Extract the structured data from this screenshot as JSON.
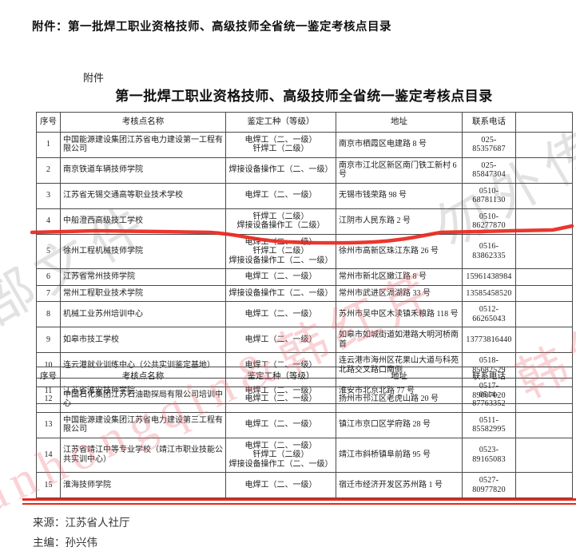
{
  "page": {
    "attachment_heading": "附件：第一批焊工职业资格技师、高级技师全省统一鉴定考核点目录",
    "attachment_label": "附件",
    "table_title": "第一批焊工职业资格技师、高级技师全省统一鉴定考核点目录",
    "source_line": "来源：江苏省人社厅",
    "editor_line": "主编：孙兴伟"
  },
  "colors": {
    "accent_red": "#e8261c",
    "table_border": "#4a4a4a",
    "text": "#1c1c1c",
    "watermark_gray": "#4b4b4b",
    "watermark_pink": "#ec6e76"
  },
  "watermarks": {
    "gray_left": "内部文件",
    "gray_right": "勿外传",
    "pink_main": "hanhongqin&韩红芹",
    "pink_edge": "韩红芹"
  },
  "columns": [
    "序号",
    "考核点名称",
    "鉴定工种（等级）",
    "地址",
    "联系电话",
    ""
  ],
  "tables": [
    {
      "rows": [
        {
          "no": "1",
          "name": "中国能源建设集团江苏省电力建设第一工程有限公司",
          "types": [
            "电焊工（二、一级）",
            "钎焊工（二级）"
          ],
          "address": "南京市栖霞区电建路 8 号",
          "phone": "025-85357687"
        },
        {
          "no": "2",
          "name": "南京铁道车辆技师学院",
          "types": [
            "焊接设备操作工（二、一级）"
          ],
          "address": "南京市江北区新区南门铁工新村 6 号",
          "phone": "025-85847304"
        },
        {
          "no": "3",
          "name": "江苏省无锡交通高等职业技术学校",
          "types": [
            "电焊工（二、一级）"
          ],
          "address": "无锡市钱荣路 98 号",
          "phone": "0510-68781130"
        },
        {
          "no": "4",
          "name": "中船澄西高级技工学校",
          "types": [
            "钎焊工（二级）",
            "焊接设备操作工（二级）"
          ],
          "address": "江阴市人民东路 2 号",
          "phone": "0510-86277870"
        },
        {
          "no": "5",
          "name": "徐州工程机械技师学院",
          "types": [
            "电焊工（二、一级）",
            "钎焊工（二级）",
            "焊接设备操作工（二、一级）"
          ],
          "address": "徐州市高新区珠江东路 26 号",
          "phone": "0516-83862335"
        },
        {
          "no": "6",
          "name": "江苏省常州技师学院",
          "types": [
            "电焊工（二、一级）"
          ],
          "address": "常州市新北区嫩江路 8 号",
          "phone": "15961438984"
        },
        {
          "no": "7",
          "name": "常州工程职业技术学院",
          "types": [
            "焊接设备操作工（二、一级）"
          ],
          "address": "常州市武进区滆湖路 33 号",
          "phone": "13585458520"
        },
        {
          "no": "8",
          "name": "机械工业苏州培训中心",
          "types": [
            "电焊工（二、一级）"
          ],
          "address": "苏州市吴中区木渎镇禾粮路 118 号",
          "phone": "0512-66265043"
        },
        {
          "no": "9",
          "name": "如皋市技工学校",
          "types": [
            "电焊工（二、一级）"
          ],
          "address": "如皋市如城街道如港路大明河桥南首",
          "phone": "13773816440"
        },
        {
          "no": "10",
          "name": "连云港就业训练中心（公共实训鉴定基地）",
          "types": [
            "电焊工（二、一级）"
          ],
          "address": "连云港市海州区花果山大道与科苑北路交叉路口南侧",
          "phone": "0518-85682529"
        },
        {
          "no": "11",
          "name": "江苏省淮安技师学院",
          "types": [
            "电焊工（二、一级）"
          ],
          "address": "淮安市北京北路 77 号",
          "phone": "0517-89007020"
        }
      ]
    },
    {
      "rows": [
        {
          "no": "12",
          "name": "中国石化集团江苏石油勘探局有限公司培训中心",
          "types": [
            "电焊工（二、一级）"
          ],
          "address": "扬州市邗江区老虎山路 20 号",
          "phone": "0514-87763352"
        },
        {
          "no": "13",
          "name": "中国能源建设集团江苏省电力建设第三工程有限公司",
          "types": [
            "电焊工（二、一级）"
          ],
          "address": "镇江市京口区学府路 28 号",
          "phone": "0511-85582995"
        },
        {
          "no": "14",
          "name": "江苏省靖江中等专业学校（靖江市职业技能公共实训中心）",
          "types": [
            "电焊工（二、一级）",
            "钎焊工（二级）",
            "焊接设备操作工（二、一级）"
          ],
          "address": "靖江市斜桥镇阜前路 95 号",
          "phone": "0523-89165083"
        },
        {
          "no": "15",
          "name": "淮海技师学院",
          "types": [
            "电焊工（二、一级）"
          ],
          "address": "宿迁市经济开发区苏州路 1 号",
          "phone": "0527-80977820"
        }
      ]
    }
  ]
}
